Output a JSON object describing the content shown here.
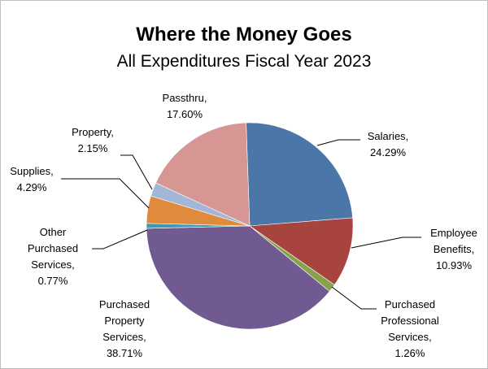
{
  "chart_data": {
    "type": "pie",
    "title": "Where the Money Goes",
    "subtitle": "All Expenditures Fiscal Year 2023",
    "slices": [
      {
        "label": "Salaries",
        "value": 24.29,
        "value_text": "24.29%",
        "color": "#4a76a8"
      },
      {
        "label": "Employee Benefits",
        "value": 10.93,
        "value_text": "10.93%",
        "color": "#a8443f"
      },
      {
        "label": "Purchased Professional Services",
        "value": 1.26,
        "value_text": "1.26%",
        "color": "#87a34a"
      },
      {
        "label": "Purchased Property Services",
        "value": 38.71,
        "value_text": "38.71%",
        "color": "#715a91"
      },
      {
        "label": "Other Purchased Services",
        "value": 0.77,
        "value_text": "0.77%",
        "color": "#3d9bb1"
      },
      {
        "label": "Supplies",
        "value": 4.29,
        "value_text": "4.29%",
        "color": "#e08a3c"
      },
      {
        "label": "Property",
        "value": 2.15,
        "value_text": "2.15%",
        "color": "#a2b7d8"
      },
      {
        "label": "Passthru",
        "value": 17.6,
        "value_text": "17.60%",
        "color": "#d69693"
      }
    ],
    "label_lines": [
      [
        "Salaries,",
        "24.29%"
      ],
      [
        "Employee",
        "Benefits,",
        "10.93%"
      ],
      [
        "Purchased",
        "Professional",
        "Services,",
        "1.26%"
      ],
      [
        "Purchased",
        "Property",
        "Services,",
        "38.71%"
      ],
      [
        "Other",
        "Purchased",
        "Services,",
        "0.77%"
      ],
      [
        "Supplies,",
        "4.29%"
      ],
      [
        "Property,",
        "2.15%"
      ],
      [
        "Passthru,",
        "17.60%"
      ]
    ],
    "legend": "none"
  }
}
